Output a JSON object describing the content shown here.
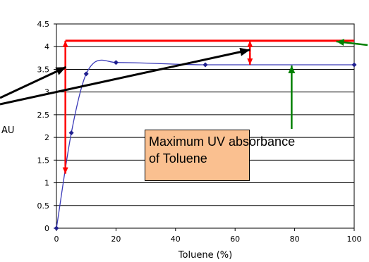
{
  "chart_data": {
    "type": "line",
    "xlabel": "Toluene (%)",
    "ylabel": "AU",
    "xlim": [
      0,
      100
    ],
    "ylim": [
      0,
      4.5
    ],
    "x_ticks": [
      0,
      20,
      40,
      60,
      80,
      100
    ],
    "y_ticks": [
      0,
      0.5,
      1,
      1.5,
      2,
      2.5,
      3,
      3.5,
      4,
      4.5
    ],
    "x_tick_labels": [
      "0",
      "20",
      "40",
      "60",
      "80",
      "100"
    ],
    "y_tick_labels": [
      "0",
      "0.5",
      "1",
      "1.5",
      "2",
      "2.5",
      "3",
      "3.5",
      "4",
      "4.5"
    ],
    "grid": "horizontal",
    "series": [
      {
        "x": [
          0,
          5,
          10,
          20,
          50,
          100
        ],
        "y": [
          0,
          2.1,
          3.4,
          3.65,
          3.6,
          3.6
        ],
        "color": "#1f1f8f",
        "marker": "diamond"
      }
    ],
    "reference_line": {
      "y": 4.13,
      "color": "#ff0000"
    },
    "annotation": {
      "lines": [
        "Maximum UV absorbance",
        "of Toluene"
      ],
      "background": "#fac090"
    },
    "colors": {
      "curve": "#3a3ab8",
      "marker": "#1f1f8f",
      "red": "#ff0000",
      "green": "#008000",
      "black": "#000000"
    }
  }
}
